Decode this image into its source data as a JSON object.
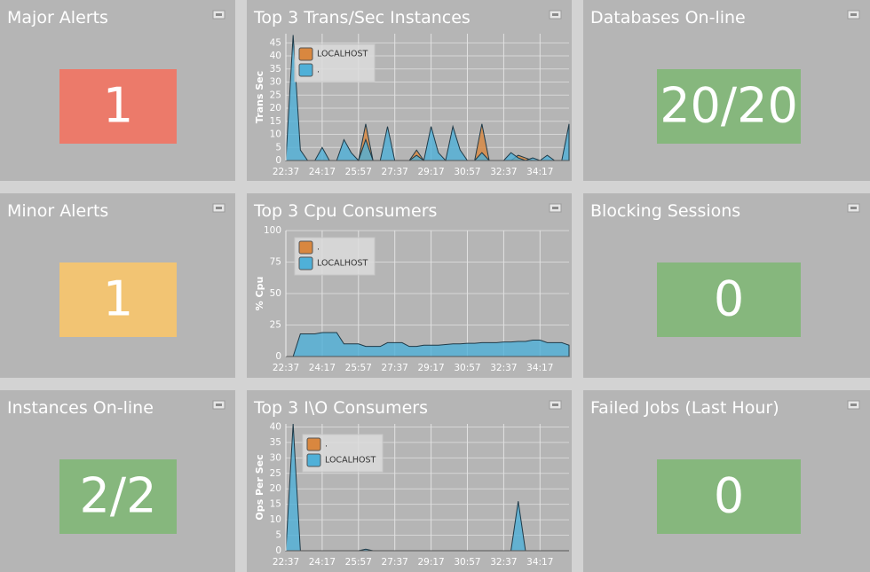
{
  "tiles": [
    {
      "title": "Major Alerts",
      "value": "1",
      "color": "#ec7a6a"
    },
    {
      "title": "Minor Alerts",
      "value": "1",
      "color": "#f2c473"
    },
    {
      "title": "Instances On-line",
      "value": "2/2",
      "color": "#86b77d"
    },
    {
      "title": "Databases On-line",
      "value": "20/20",
      "color": "#86b77d"
    },
    {
      "title": "Blocking Sessions",
      "value": "0",
      "color": "#86b77d"
    },
    {
      "title": "Failed Jobs (Last Hour)",
      "value": "0",
      "color": "#86b77d"
    }
  ],
  "charts": [
    {
      "type": "area",
      "title": "Top 3 Trans/Sec Instances",
      "y_label": "Trans Sec",
      "categories": [
        "22:37",
        null,
        null,
        null,
        null,
        "24:17",
        null,
        null,
        null,
        null,
        "25:57",
        null,
        null,
        null,
        null,
        "27:37",
        null,
        null,
        null,
        null,
        "29:17",
        null,
        null,
        null,
        null,
        "30:57",
        null,
        null,
        null,
        null,
        "32:37",
        null,
        null,
        null,
        null,
        "34:17",
        null,
        null,
        null,
        null
      ],
      "ylim": [
        0,
        48.5
      ],
      "yticks": [
        0,
        5,
        10,
        15,
        20,
        25,
        30,
        35,
        40,
        45
      ],
      "grid": true,
      "series": [
        {
          "name": "LOCALHOST",
          "color": "#d9873f",
          "values": [
            0,
            0,
            0,
            0,
            0,
            0,
            0,
            0,
            0,
            0,
            0,
            14,
            0,
            0,
            0,
            0,
            0,
            0,
            4,
            0,
            0,
            0,
            0,
            0,
            0,
            0,
            0,
            14,
            0,
            0,
            0,
            0,
            2,
            1,
            0,
            0,
            0,
            0,
            0,
            0
          ]
        },
        {
          "name": ".",
          "color": "#4fb0d8",
          "values": [
            0,
            48,
            4,
            0,
            0,
            5,
            0,
            0,
            8,
            3,
            0,
            8,
            0,
            0,
            13,
            0,
            0,
            0,
            2,
            0,
            13,
            3,
            0,
            13,
            4,
            0,
            0,
            3,
            0,
            0,
            0,
            3,
            1,
            0,
            1,
            0,
            2,
            0,
            0,
            14
          ]
        }
      ]
    },
    {
      "type": "area",
      "title": "Top 3 Cpu Consumers",
      "y_label": "% Cpu",
      "categories": [
        "22:37",
        null,
        null,
        null,
        null,
        "24:17",
        null,
        null,
        null,
        null,
        "25:57",
        null,
        null,
        null,
        null,
        "27:37",
        null,
        null,
        null,
        null,
        "29:17",
        null,
        null,
        null,
        null,
        "30:57",
        null,
        null,
        null,
        null,
        "32:37",
        null,
        null,
        null,
        null,
        "34:17",
        null,
        null,
        null,
        null
      ],
      "ylim": [
        0,
        100
      ],
      "yticks": [
        0,
        25,
        50,
        75,
        100
      ],
      "grid": true,
      "series": [
        {
          "name": ".",
          "color": "#d9873f",
          "values": [
            0,
            0,
            0,
            0,
            0,
            0,
            0,
            0,
            0,
            0,
            0,
            0,
            0,
            0,
            0,
            0,
            0,
            0,
            0,
            0,
            0,
            0,
            0,
            0,
            0,
            0,
            0,
            0,
            0,
            0,
            0,
            0,
            0,
            0,
            0,
            0,
            0,
            0,
            0,
            0
          ]
        },
        {
          "name": "LOCALHOST",
          "color": "#4fb0d8",
          "values": [
            0,
            0,
            18,
            18,
            18,
            19,
            19,
            19,
            10,
            10,
            10,
            8,
            8,
            8,
            11,
            11,
            11,
            8,
            8,
            9,
            9,
            9,
            9.5,
            10,
            10,
            10.5,
            10.5,
            11,
            11,
            11,
            11.5,
            11.5,
            12,
            12,
            13,
            13,
            11,
            11,
            11,
            9
          ]
        }
      ]
    },
    {
      "type": "area",
      "title": "Top 3 I\\O Consumers",
      "y_label": "Ops Per Sec",
      "categories": [
        "22:37",
        null,
        null,
        null,
        null,
        "24:17",
        null,
        null,
        null,
        null,
        "25:57",
        null,
        null,
        null,
        null,
        "27:37",
        null,
        null,
        null,
        null,
        "29:17",
        null,
        null,
        null,
        null,
        "30:57",
        null,
        null,
        null,
        null,
        "32:37",
        null,
        null,
        null,
        null,
        "34:17",
        null,
        null,
        null,
        null
      ],
      "ylim": [
        0,
        41
      ],
      "yticks": [
        0,
        5,
        10,
        15,
        20,
        25,
        30,
        35,
        40
      ],
      "grid": true,
      "series": [
        {
          "name": ".",
          "color": "#d9873f",
          "values": [
            0,
            0,
            0,
            0,
            0,
            0,
            0,
            0,
            0,
            0,
            0,
            0,
            0,
            0,
            0,
            0,
            0,
            0,
            0,
            0,
            0,
            0,
            0,
            0,
            0,
            0,
            0,
            0,
            0,
            0,
            0,
            0,
            0,
            0,
            0,
            0,
            0,
            0,
            0,
            0
          ]
        },
        {
          "name": "LOCALHOST",
          "color": "#4fb0d8",
          "values": [
            0,
            41,
            0,
            0,
            0,
            0,
            0,
            0,
            0,
            0,
            0,
            0.5,
            0,
            0,
            0,
            0,
            0,
            0,
            0,
            0,
            0,
            0,
            0,
            0,
            0,
            0,
            0,
            0,
            0,
            0,
            0,
            0,
            16,
            0,
            0,
            0,
            0,
            0,
            0,
            0
          ]
        }
      ]
    }
  ]
}
